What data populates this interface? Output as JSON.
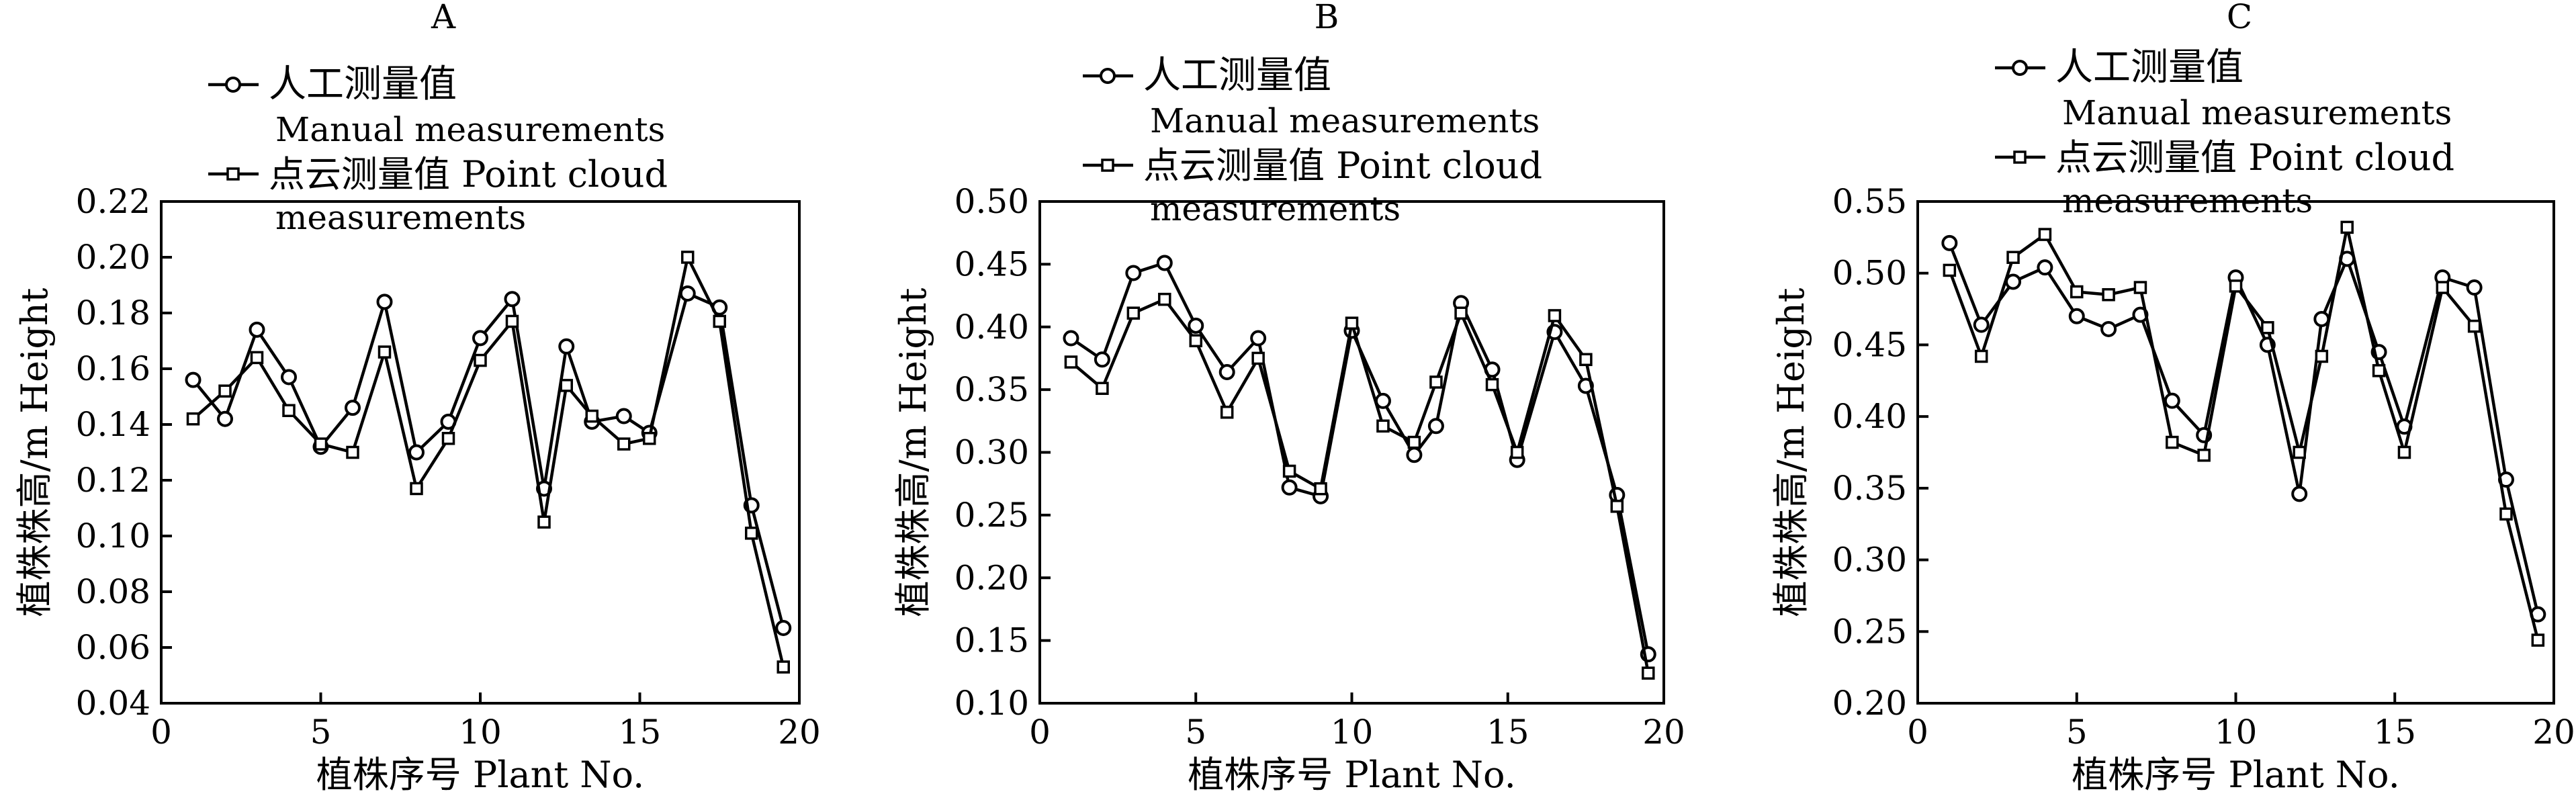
{
  "legend": {
    "manual_cn": "人工测量值",
    "manual_en": "Manual measurements",
    "cloud_line1": "点云测量值 Point cloud",
    "cloud_line2": "measurements"
  },
  "chart_data": [
    {
      "type": "line",
      "title": "A",
      "xlabel": "植株序号 Plant No.",
      "ylabel": "植株株高/m Height",
      "xlim": [
        0,
        20
      ],
      "ylim": [
        0.04,
        0.22
      ],
      "xticks": [
        "0",
        "5",
        "10",
        "15",
        "20"
      ],
      "yticks": [
        "0.04",
        "0.06",
        "0.08",
        "0.10",
        "0.12",
        "0.14",
        "0.16",
        "0.18",
        "0.20",
        "0.22"
      ],
      "x": [
        1,
        2,
        3,
        4,
        5,
        6,
        7,
        8,
        9,
        10,
        11,
        12,
        12.7,
        13.5,
        14.5,
        15.3,
        16.5,
        17.5,
        18.5,
        19.5
      ],
      "grid": false,
      "legend_position": "top-left",
      "series": [
        {
          "name": "人工测量值 Manual measurements",
          "marker": "circle",
          "values": [
            0.156,
            0.142,
            0.174,
            0.157,
            0.132,
            0.146,
            0.184,
            0.13,
            0.141,
            0.171,
            0.185,
            0.117,
            0.168,
            0.141,
            0.143,
            0.137,
            0.187,
            0.182,
            0.111,
            0.067
          ]
        },
        {
          "name": "点云测量值 Point cloud measurements",
          "marker": "square",
          "values": [
            0.142,
            0.152,
            0.164,
            0.145,
            0.133,
            0.13,
            0.166,
            0.117,
            0.135,
            0.163,
            0.177,
            0.105,
            0.154,
            0.143,
            0.133,
            0.135,
            0.2,
            0.177,
            0.101,
            0.053
          ]
        }
      ]
    },
    {
      "type": "line",
      "title": "B",
      "xlabel": "植株序号 Plant No.",
      "ylabel": "植株株高/m Height",
      "xlim": [
        0,
        20
      ],
      "ylim": [
        0.1,
        0.5
      ],
      "xticks": [
        "0",
        "5",
        "10",
        "15",
        "20"
      ],
      "yticks": [
        "0.10",
        "0.15",
        "0.20",
        "0.25",
        "0.30",
        "0.35",
        "0.40",
        "0.45",
        "0.50"
      ],
      "x": [
        1,
        2,
        3,
        4,
        5,
        6,
        7,
        8,
        9,
        10,
        11,
        12,
        12.7,
        13.5,
        14.5,
        15.3,
        16.5,
        17.5,
        18.5,
        19.5
      ],
      "grid": false,
      "legend_position": "top-left",
      "series": [
        {
          "name": "人工测量值 Manual measurements",
          "marker": "circle",
          "values": [
            0.391,
            0.374,
            0.443,
            0.451,
            0.401,
            0.364,
            0.391,
            0.272,
            0.265,
            0.397,
            0.341,
            0.298,
            0.321,
            0.419,
            0.366,
            0.294,
            0.396,
            0.353,
            0.266,
            0.139
          ]
        },
        {
          "name": "点云测量值 Point cloud measurements",
          "marker": "square",
          "values": [
            0.372,
            0.351,
            0.411,
            0.422,
            0.389,
            0.332,
            0.375,
            0.285,
            0.271,
            0.403,
            0.321,
            0.308,
            0.356,
            0.411,
            0.354,
            0.3,
            0.409,
            0.374,
            0.257,
            0.124
          ]
        }
      ]
    },
    {
      "type": "line",
      "title": "C",
      "xlabel": "植株序号 Plant No.",
      "ylabel": "植株株高/m Height",
      "xlim": [
        0,
        20
      ],
      "ylim": [
        0.2,
        0.55
      ],
      "xticks": [
        "0",
        "5",
        "10",
        "15",
        "20"
      ],
      "yticks": [
        "0.20",
        "0.25",
        "0.30",
        "0.35",
        "0.40",
        "0.45",
        "0.50",
        "0.55"
      ],
      "x": [
        1,
        2,
        3,
        4,
        5,
        6,
        7,
        8,
        9,
        10,
        11,
        12,
        12.7,
        13.5,
        14.5,
        15.3,
        16.5,
        17.5,
        18.5,
        19.5
      ],
      "grid": false,
      "legend_position": "top-left",
      "series": [
        {
          "name": "人工测量值 Manual measurements",
          "marker": "circle",
          "values": [
            0.521,
            0.464,
            0.494,
            0.504,
            0.47,
            0.461,
            0.471,
            0.411,
            0.387,
            0.497,
            0.45,
            0.346,
            0.468,
            0.51,
            0.445,
            0.393,
            0.497,
            0.49,
            0.356,
            0.262
          ]
        },
        {
          "name": "点云测量值 Point cloud measurements",
          "marker": "square",
          "values": [
            0.502,
            0.442,
            0.511,
            0.527,
            0.487,
            0.485,
            0.49,
            0.382,
            0.373,
            0.491,
            0.462,
            0.375,
            0.442,
            0.532,
            0.432,
            0.375,
            0.49,
            0.463,
            0.332,
            0.244
          ]
        }
      ]
    }
  ]
}
